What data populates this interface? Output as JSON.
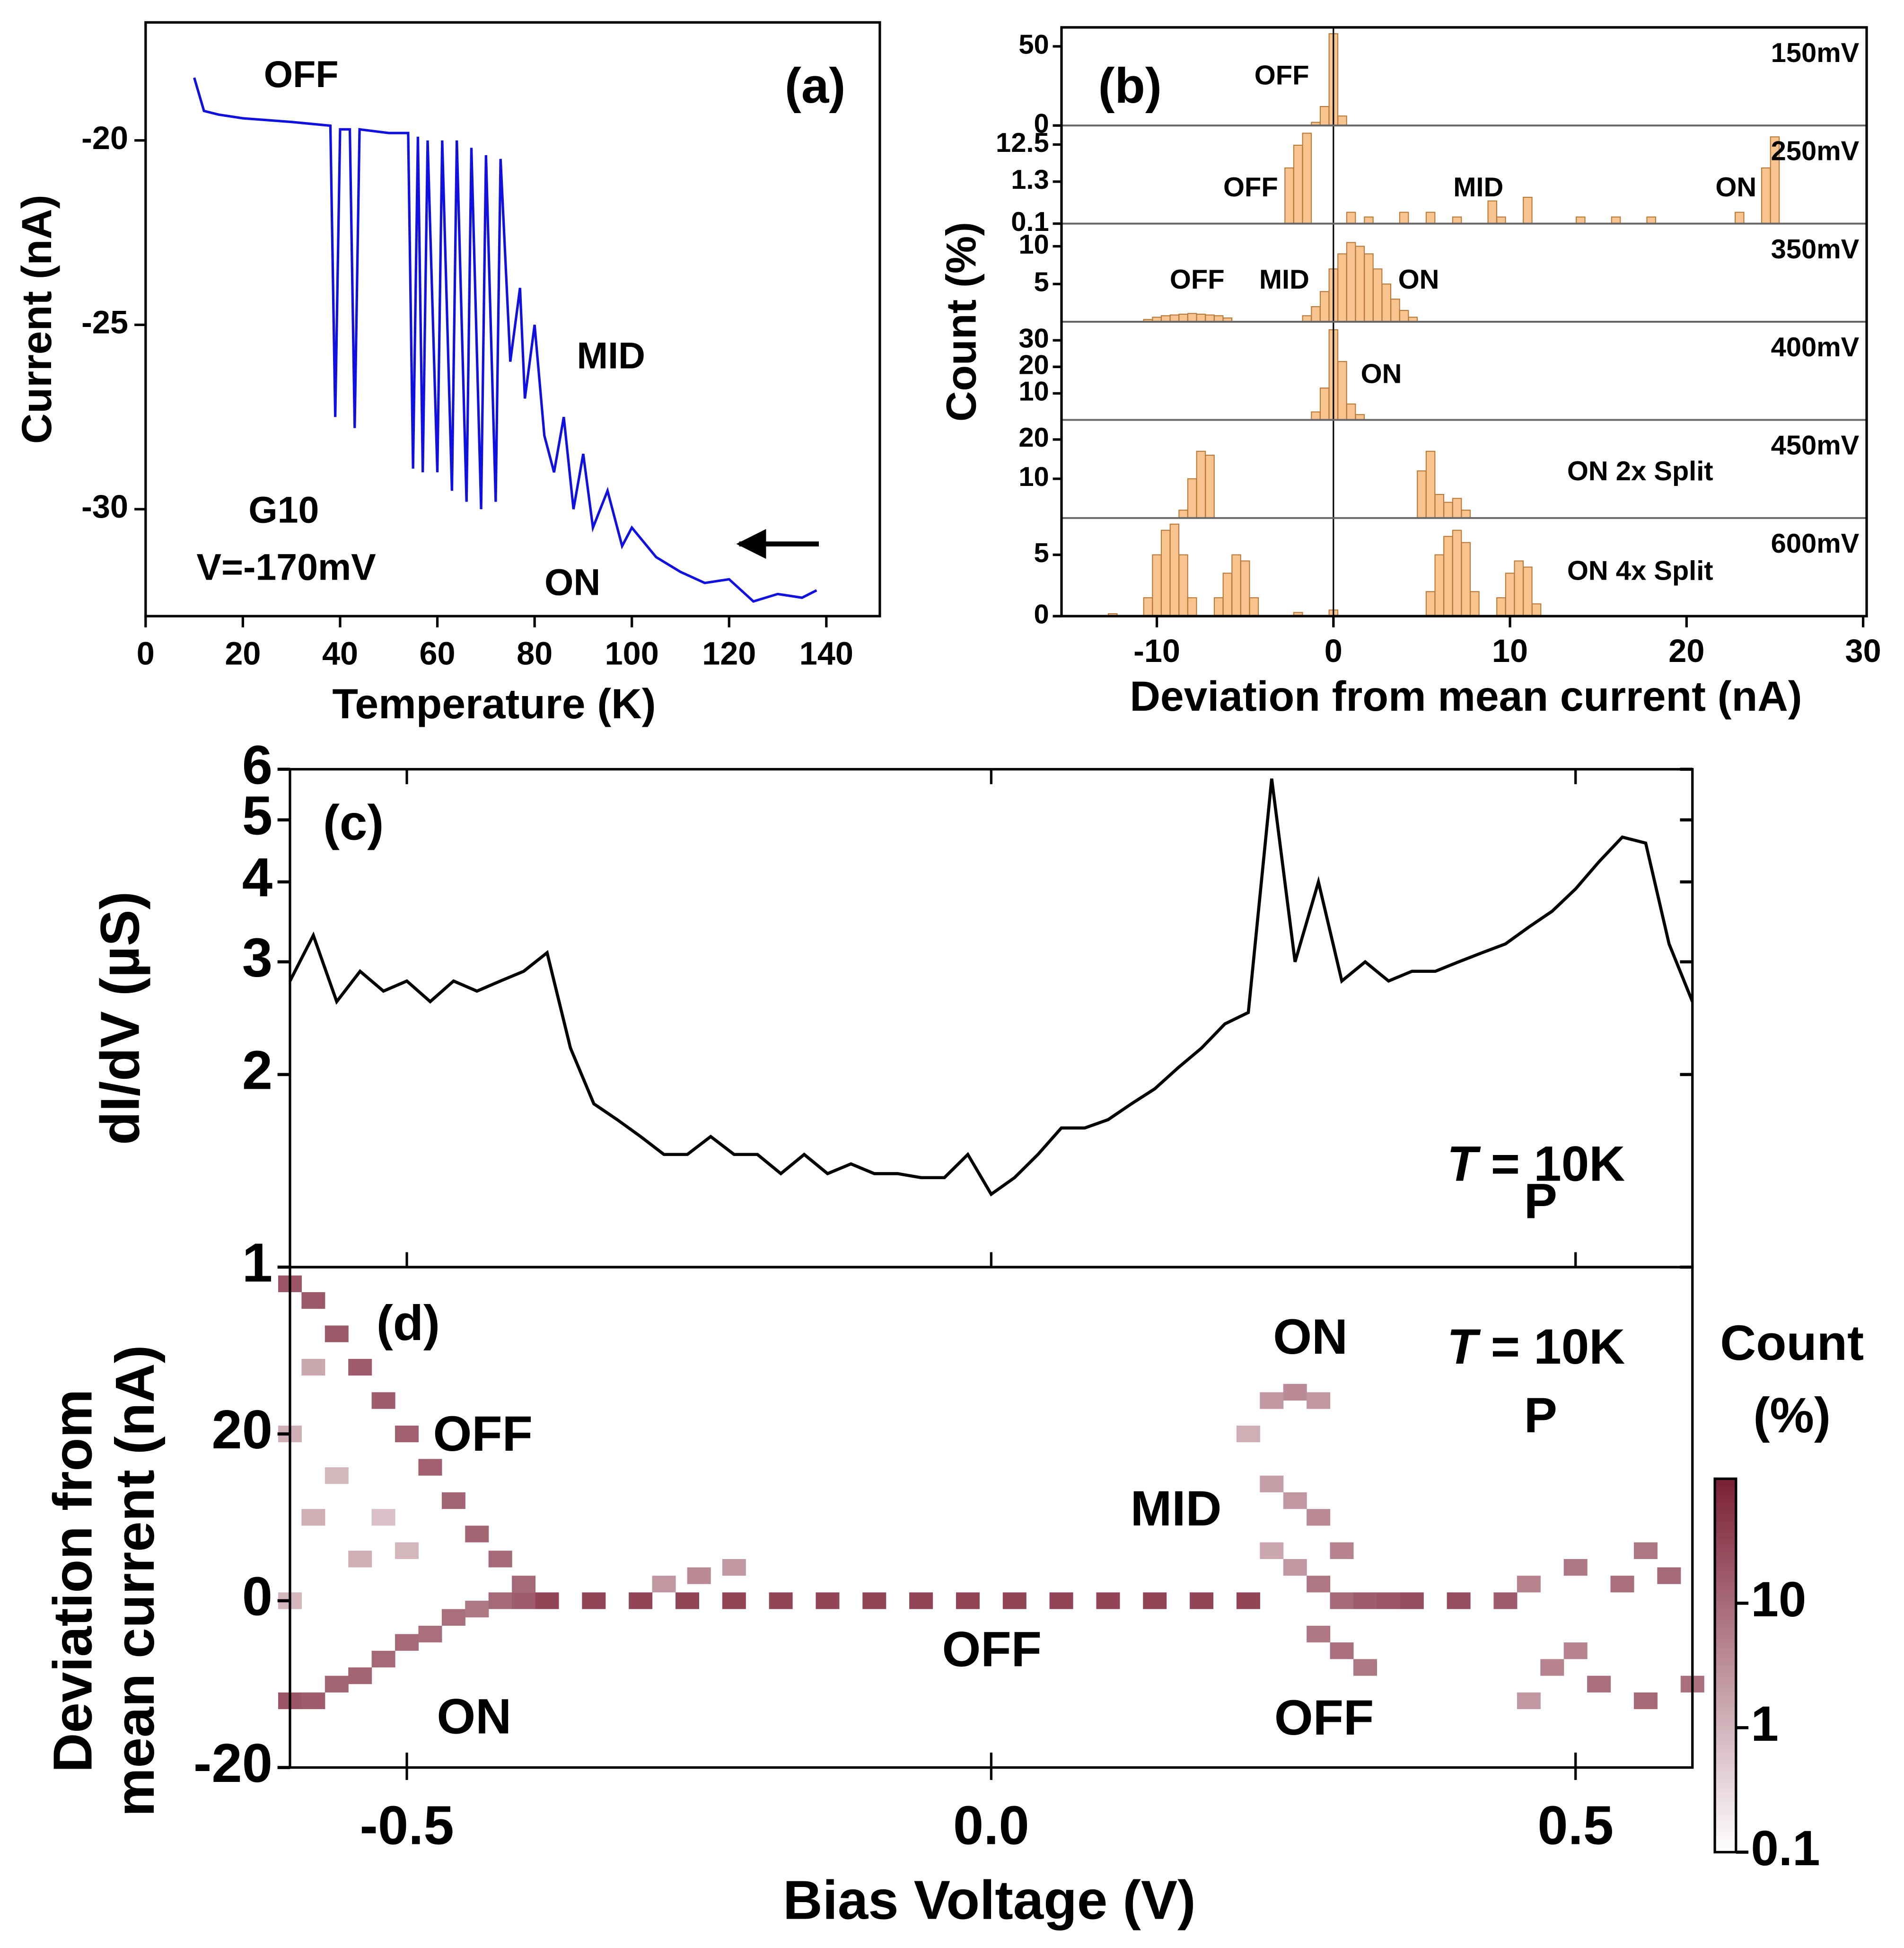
{
  "chart_data": [
    {
      "type": "line",
      "panel_label": "(a)",
      "xlabel": "Temperature (K)",
      "ylabel": "Current (nA)",
      "color": "#1010e0",
      "xlim": [
        0,
        151
      ],
      "xticks": [
        0,
        20,
        40,
        60,
        80,
        100,
        120,
        140
      ],
      "ylim": [
        -32.9,
        -16.8
      ],
      "yticks": [
        -20,
        -25,
        -30
      ],
      "x": [
        10,
        12,
        15,
        20,
        30,
        38,
        39,
        40,
        42,
        43,
        44,
        50,
        54,
        55,
        56,
        57,
        58,
        60,
        61,
        63,
        64,
        66,
        67,
        69,
        70,
        72,
        73,
        75,
        77,
        78,
        80,
        82,
        84,
        86,
        88,
        90,
        92,
        95,
        98,
        100,
        105,
        110,
        115,
        120,
        125,
        130,
        135,
        138
      ],
      "values": [
        -18.3,
        -19.2,
        -19.3,
        -19.4,
        -19.5,
        -19.6,
        -27.5,
        -19.7,
        -19.7,
        -27.8,
        -19.7,
        -19.8,
        -19.8,
        -28.9,
        -19.9,
        -29,
        -20,
        -29,
        -20,
        -29.5,
        -20,
        -29.8,
        -20.2,
        -30,
        -20.4,
        -29.8,
        -20.5,
        -26,
        -24,
        -27,
        -25,
        -28,
        -29,
        -27.5,
        -30,
        -28.5,
        -30.5,
        -29.5,
        -31,
        -30.5,
        -31.3,
        -31.7,
        -32,
        -31.9,
        -32.5,
        -32.3,
        -32.4,
        -32.2
      ],
      "annotations": [
        "OFF",
        "MID",
        "ON",
        "G10",
        "V=-170mV"
      ]
    },
    {
      "type": "bar",
      "panel_label": "(b)",
      "xlabel": "Deviation from mean current (nA)",
      "ylabel": "Count (%)",
      "color": "#f7c48f",
      "xlim": [
        -15.4,
        30.2
      ],
      "xticks": [
        -10,
        0,
        10,
        20,
        30
      ],
      "panels": [
        {
          "label": "150mV",
          "ylim": [
            0,
            62
          ],
          "yticks": [
            0,
            50
          ],
          "x": [
            -1,
            -0.5,
            0,
            0.5
          ],
          "values": [
            2,
            12,
            58,
            6
          ],
          "annotations": [
            "OFF"
          ]
        },
        {
          "label": "250mV",
          "log_y": true,
          "ylim": [
            0.1,
            40
          ],
          "yticks": [
            0.1,
            1.3,
            12.5
          ],
          "x": [
            -2.5,
            -2,
            -1.5,
            1,
            2,
            4,
            5.5,
            7,
            9,
            9.5,
            11,
            14,
            16,
            18,
            23,
            24.5,
            25
          ],
          "values": [
            3,
            12,
            25,
            0.2,
            0.15,
            0.2,
            0.2,
            0.15,
            0.4,
            0.15,
            0.5,
            0.15,
            0.15,
            0.15,
            0.2,
            3,
            20
          ],
          "annotations": [
            "OFF",
            "MID",
            "ON"
          ]
        },
        {
          "label": "350mV",
          "ylim": [
            0,
            13
          ],
          "yticks": [
            5,
            10
          ],
          "x": [
            -10.5,
            -10,
            -9.5,
            -9,
            -8.5,
            -8,
            -7.5,
            -7,
            -6.5,
            -6,
            -1.5,
            -1,
            -0.5,
            0,
            0.5,
            1,
            1.5,
            2,
            2.5,
            3,
            3.5,
            4,
            4.5
          ],
          "values": [
            0.3,
            0.6,
            0.8,
            0.9,
            1.0,
            1.1,
            1.0,
            0.9,
            0.8,
            0.5,
            0.8,
            2,
            4,
            7,
            9,
            10.5,
            10,
            9,
            7,
            5,
            3,
            1.5,
            0.6
          ],
          "annotations": [
            "OFF",
            "MID",
            "ON"
          ]
        },
        {
          "label": "400mV",
          "ylim": [
            0,
            37
          ],
          "yticks": [
            10,
            20,
            30
          ],
          "x": [
            -1,
            -0.5,
            0,
            0.5,
            1,
            1.5
          ],
          "values": [
            3,
            12,
            34,
            22,
            6,
            2
          ],
          "annotations": [
            "ON"
          ]
        },
        {
          "label": "450mV",
          "ylim": [
            0,
            25
          ],
          "yticks": [
            10,
            20
          ],
          "x": [
            -8.5,
            -8,
            -7.5,
            -7,
            5,
            5.5,
            6,
            6.5,
            7,
            7.5
          ],
          "values": [
            2,
            10,
            17,
            16,
            12,
            17,
            6,
            4,
            5,
            2
          ],
          "annotations": [
            "ON 2x Split"
          ]
        },
        {
          "label": "600mV",
          "ylim": [
            0,
            8
          ],
          "yticks": [
            0,
            5
          ],
          "x": [
            -12.5,
            -10.5,
            -10,
            -9.5,
            -9,
            -8.5,
            -8,
            -6.5,
            -6,
            -5.5,
            -5,
            -4.5,
            -2,
            0,
            5.5,
            6,
            6.5,
            7,
            7.5,
            8,
            9.5,
            10,
            10.5,
            11,
            11.5
          ],
          "values": [
            0.2,
            1.5,
            5,
            7,
            7.5,
            5,
            1.5,
            1.5,
            3.5,
            5,
            4.5,
            1.5,
            0.3,
            0.5,
            2,
            5,
            6.5,
            7,
            6,
            2,
            1.5,
            3.5,
            4.5,
            4,
            1
          ],
          "annotations": [
            "ON 4x Split"
          ]
        }
      ]
    },
    {
      "type": "line",
      "panel_label": "(c)",
      "ylabel": "dI/dV (µS)",
      "color": "#000000",
      "log_y": true,
      "xlim": [
        -0.6,
        0.6
      ],
      "xticks": [
        -0.5,
        0,
        0.5
      ],
      "ylim": [
        1,
        6
      ],
      "yticks": [
        1,
        2,
        3,
        4,
        5,
        6
      ],
      "x": [
        -0.6,
        -0.58,
        -0.56,
        -0.54,
        -0.52,
        -0.5,
        -0.48,
        -0.46,
        -0.44,
        -0.42,
        -0.4,
        -0.38,
        -0.36,
        -0.34,
        -0.32,
        -0.3,
        -0.28,
        -0.26,
        -0.24,
        -0.22,
        -0.2,
        -0.18,
        -0.16,
        -0.14,
        -0.12,
        -0.1,
        -0.08,
        -0.06,
        -0.04,
        -0.02,
        0,
        0.02,
        0.04,
        0.06,
        0.08,
        0.1,
        0.12,
        0.14,
        0.16,
        0.18,
        0.2,
        0.22,
        0.24,
        0.26,
        0.28,
        0.3,
        0.32,
        0.34,
        0.36,
        0.38,
        0.4,
        0.42,
        0.44,
        0.46,
        0.48,
        0.5,
        0.52,
        0.54,
        0.56,
        0.58,
        0.6
      ],
      "values": [
        2.8,
        3.3,
        2.6,
        2.9,
        2.7,
        2.8,
        2.6,
        2.8,
        2.7,
        2.8,
        2.9,
        3.1,
        2.2,
        1.8,
        1.7,
        1.6,
        1.5,
        1.5,
        1.6,
        1.5,
        1.5,
        1.4,
        1.5,
        1.4,
        1.45,
        1.4,
        1.4,
        1.38,
        1.38,
        1.5,
        1.3,
        1.38,
        1.5,
        1.65,
        1.65,
        1.7,
        1.8,
        1.9,
        2.05,
        2.2,
        2.4,
        2.5,
        5.8,
        3,
        4,
        2.8,
        3.0,
        2.8,
        2.9,
        2.9,
        3.0,
        3.1,
        3.2,
        3.4,
        3.6,
        3.9,
        4.3,
        4.7,
        4.6,
        3.2,
        2.6
      ],
      "annotations": [
        "T",
        "= 10K",
        "P"
      ]
    },
    {
      "type": "heatmap",
      "panel_label": "(d)",
      "xlabel": "Bias Voltage (V)",
      "ylabel": [
        "Deviation from",
        "mean current (nA)"
      ],
      "xlim": [
        -0.6,
        0.6
      ],
      "xticks": [
        -0.5,
        {
          "value": 0,
          "label": "0.0"
        },
        0.5
      ],
      "ylim": [
        -20,
        40
      ],
      "yticks": [
        -20,
        0,
        20
      ],
      "x": [
        -0.6,
        -0.58,
        -0.56,
        -0.54,
        -0.52,
        -0.5,
        -0.48,
        -0.46,
        -0.44,
        -0.42,
        -0.4,
        -0.6,
        -0.58,
        -0.56,
        -0.54,
        -0.6,
        -0.52,
        -0.58,
        -0.5,
        -0.6,
        -0.58,
        -0.56,
        -0.54,
        -0.52,
        -0.5,
        -0.48,
        -0.46,
        -0.44,
        -0.42,
        -0.4,
        -0.38,
        -0.34,
        -0.3,
        -0.26,
        -0.22,
        -0.18,
        -0.14,
        -0.1,
        -0.06,
        -0.02,
        0.02,
        0.06,
        0.1,
        0.14,
        0.18,
        0.22,
        -0.28,
        -0.25,
        -0.22,
        0.22,
        0.24,
        0.26,
        0.28,
        0.24,
        0.26,
        0.28,
        0.3,
        0.24,
        0.26,
        0.28,
        0.3,
        0.32,
        0.34,
        0.36,
        0.4,
        0.44,
        0.28,
        0.3,
        0.32,
        0.46,
        0.5,
        0.54,
        0.58,
        0.48,
        0.52,
        0.56,
        0.6,
        0.46,
        0.5,
        0.56
      ],
      "y": [
        38,
        36,
        32,
        28,
        24,
        20,
        16,
        12,
        8,
        5,
        2,
        20,
        10,
        15,
        5,
        0,
        10,
        28,
        6,
        -12,
        -12,
        -10,
        -9,
        -7,
        -5,
        -4,
        -2,
        -1,
        0,
        0,
        0,
        0,
        0,
        0,
        0,
        0,
        0,
        0,
        0,
        0,
        0,
        0,
        0,
        0,
        0,
        0,
        2,
        3,
        4,
        20,
        24,
        25,
        24,
        14,
        12,
        10,
        6,
        6,
        4,
        2,
        0,
        0,
        0,
        0,
        0,
        0,
        -4,
        -6,
        -8,
        2,
        4,
        2,
        3,
        -8,
        -10,
        -12,
        -10,
        -12,
        -6,
        6
      ],
      "values": [
        10,
        9,
        9,
        8,
        8,
        7,
        7,
        6,
        6,
        5,
        5,
        0.5,
        0.5,
        0.4,
        0.5,
        0.4,
        0.3,
        0.6,
        0.4,
        10,
        8,
        6,
        6,
        5,
        5,
        4,
        4,
        3,
        5,
        8,
        20,
        20,
        20,
        20,
        20,
        20,
        20,
        20,
        20,
        20,
        20,
        20,
        20,
        20,
        20,
        20,
        1,
        1.5,
        1,
        0.5,
        1,
        1.5,
        1,
        0.8,
        1,
        1.5,
        2,
        0.6,
        1,
        3,
        5,
        8,
        10,
        15,
        15,
        8,
        3,
        4,
        3,
        2,
        3,
        4,
        5,
        2,
        4,
        5,
        4,
        1,
        2,
        3
      ],
      "annotations": [
        "OFF",
        "ON",
        "MID",
        "ON",
        "OFF",
        "OFF",
        "T",
        "= 10K",
        "P"
      ],
      "colorbar": {
        "title": [
          "Count",
          "(%)"
        ],
        "log": true,
        "clim": [
          0.1,
          100
        ],
        "ticks": [
          0.1,
          1,
          10
        ],
        "colors": [
          "#ffffff",
          "#7a1f35"
        ]
      }
    }
  ]
}
